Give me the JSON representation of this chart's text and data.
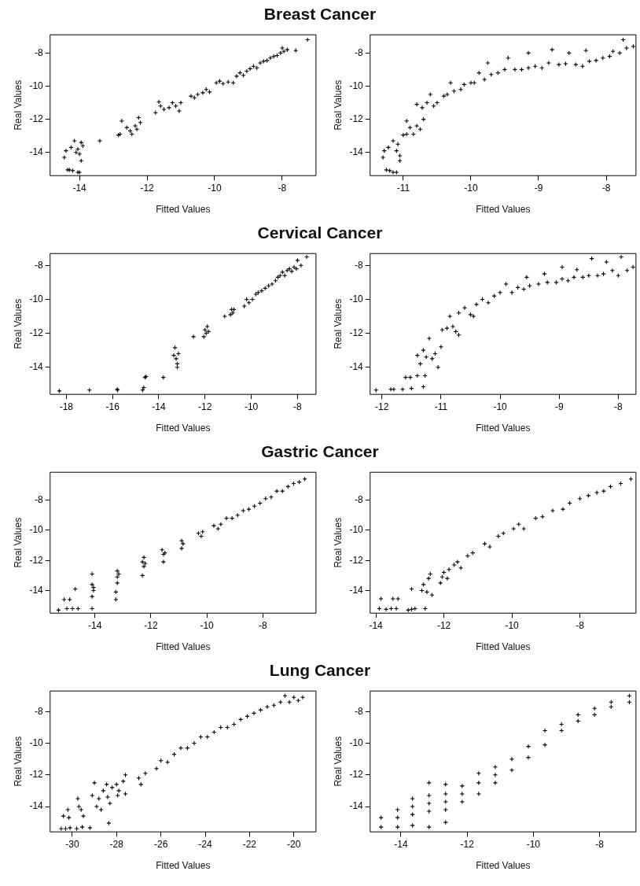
{
  "chart_data": [
    {
      "type": "scatter",
      "title": "Breast Cancer",
      "xlabel": "Fitted Values",
      "ylabel": "Real Values",
      "color": "#000000",
      "marker": "cross",
      "grid": false,
      "legend": false,
      "xlim": [
        -14.87,
        -7.0
      ],
      "ylim": [
        -15.4,
        -6.9
      ],
      "xticks": [
        -14,
        -12,
        -10,
        -8
      ],
      "yticks": [
        -14,
        -12,
        -10,
        -8
      ],
      "x": [
        -14.45,
        -14.4,
        -14.25,
        -14.35,
        -14.3,
        -14.2,
        -14.05,
        -14.0,
        -14.15,
        -14.05,
        -14.0,
        -13.95,
        -13.9,
        -13.95,
        -14.1,
        -13.4,
        -12.85,
        -12.8,
        -12.75,
        -12.6,
        -12.5,
        -12.45,
        -12.35,
        -12.3,
        -12.25,
        -12.2,
        -11.75,
        -11.65,
        -11.6,
        -11.5,
        -11.35,
        -11.25,
        -11.15,
        -11.05,
        -11.0,
        -10.7,
        -10.6,
        -10.5,
        -10.35,
        -10.25,
        -10.15,
        -9.95,
        -9.85,
        -9.75,
        -9.6,
        -9.45,
        -9.35,
        -9.25,
        -9.15,
        -9.05,
        -8.95,
        -8.85,
        -8.75,
        -8.65,
        -8.55,
        -8.45,
        -8.35,
        -8.25,
        -8.15,
        -8.05,
        -8.0,
        -7.95,
        -7.85,
        -7.6,
        -7.25
      ],
      "values": [
        -14.3,
        -13.9,
        -13.7,
        -15.05,
        -15.05,
        -15.1,
        -15.2,
        -15.2,
        -13.3,
        -13.8,
        -14.1,
        -14.5,
        -13.6,
        -13.4,
        -14.0,
        -13.3,
        -12.95,
        -12.9,
        -12.1,
        -12.5,
        -12.7,
        -12.9,
        -12.4,
        -12.6,
        -11.9,
        -12.2,
        -11.6,
        -10.95,
        -11.2,
        -11.4,
        -11.3,
        -11.0,
        -11.2,
        -11.5,
        -11.0,
        -10.6,
        -10.7,
        -10.5,
        -10.4,
        -10.2,
        -10.35,
        -9.8,
        -9.7,
        -9.85,
        -9.75,
        -9.8,
        -9.4,
        -9.2,
        -9.35,
        -9.1,
        -8.95,
        -8.8,
        -8.9,
        -8.6,
        -8.5,
        -8.45,
        -8.3,
        -8.2,
        -8.15,
        -8.0,
        -7.7,
        -7.9,
        -7.8,
        -7.85,
        -7.2
      ]
    },
    {
      "type": "scatter",
      "xlabel": "Fitted Values",
      "ylabel": "Real Values",
      "color": "#000000",
      "marker": "cross",
      "grid": false,
      "legend": false,
      "xlim": [
        -11.49,
        -7.56
      ],
      "ylim": [
        -15.4,
        -6.9
      ],
      "xticks": [
        -11,
        -10,
        -9,
        -8
      ],
      "yticks": [
        -14,
        -12,
        -10,
        -8
      ],
      "x": [
        -11.3,
        -11.28,
        -11.25,
        -11.2,
        -11.15,
        -11.1,
        -11.22,
        -11.15,
        -11.1,
        -11.05,
        -11.05,
        -11.08,
        -11.0,
        -10.95,
        -10.95,
        -10.9,
        -10.85,
        -10.8,
        -10.75,
        -10.7,
        -10.8,
        -10.72,
        -10.65,
        -10.6,
        -10.55,
        -10.5,
        -10.4,
        -10.35,
        -10.3,
        -10.25,
        -10.15,
        -10.1,
        -10.0,
        -9.95,
        -9.88,
        -9.8,
        -9.7,
        -9.75,
        -9.6,
        -9.5,
        -9.45,
        -9.35,
        -9.25,
        -9.15,
        -9.05,
        -9.15,
        -8.95,
        -8.85,
        -8.8,
        -8.7,
        -8.6,
        -8.55,
        -8.45,
        -8.35,
        -8.25,
        -8.3,
        -8.15,
        -8.05,
        -7.95,
        -7.9,
        -7.8,
        -7.75,
        -7.7,
        -7.6
      ],
      "values": [
        -14.3,
        -13.9,
        -15.05,
        -15.1,
        -15.2,
        -15.2,
        -13.7,
        -13.3,
        -13.9,
        -14.2,
        -14.5,
        -13.5,
        -12.95,
        -12.9,
        -12.1,
        -12.5,
        -12.9,
        -12.4,
        -12.6,
        -12.0,
        -11.1,
        -11.3,
        -11.0,
        -10.5,
        -11.2,
        -11.0,
        -10.6,
        -10.5,
        -9.8,
        -10.3,
        -10.2,
        -9.9,
        -9.8,
        -9.8,
        -9.2,
        -9.6,
        -9.3,
        -8.6,
        -9.2,
        -9.0,
        -8.3,
        -9.0,
        -9.0,
        -8.9,
        -8.8,
        -8.0,
        -8.9,
        -8.6,
        -7.8,
        -8.7,
        -8.65,
        -8.0,
        -8.7,
        -8.8,
        -8.5,
        -7.85,
        -8.45,
        -8.3,
        -8.2,
        -7.9,
        -8.0,
        -7.2,
        -7.7,
        -7.6
      ]
    },
    {
      "type": "scatter",
      "title": "Cervical Cancer",
      "xlabel": "Fitted Values",
      "ylabel": "Real Values",
      "color": "#000000",
      "marker": "cross",
      "grid": false,
      "legend": false,
      "xlim": [
        -18.7,
        -7.2
      ],
      "ylim": [
        -15.6,
        -7.3
      ],
      "xticks": [
        -18,
        -16,
        -14,
        -12,
        -10,
        -8
      ],
      "yticks": [
        -14,
        -12,
        -10,
        -8
      ],
      "x": [
        -18.3,
        -17.0,
        -15.8,
        -15.78,
        -14.7,
        -14.65,
        -14.6,
        -14.55,
        -13.8,
        -13.35,
        -13.3,
        -13.25,
        -13.2,
        -13.2,
        -13.15,
        -12.5,
        -12.05,
        -12.0,
        -11.95,
        -11.9,
        -11.85,
        -11.15,
        -10.9,
        -10.85,
        -10.8,
        -10.75,
        -10.3,
        -10.2,
        -10.1,
        -9.95,
        -9.8,
        -9.7,
        -9.55,
        -9.4,
        -9.25,
        -9.1,
        -8.95,
        -8.85,
        -8.75,
        -8.65,
        -8.55,
        -8.45,
        -8.35,
        -8.25,
        -8.15,
        -8.05,
        -8.0,
        -7.85,
        -7.6
      ],
      "values": [
        -15.4,
        -15.35,
        -15.3,
        -15.35,
        -15.35,
        -15.2,
        -14.6,
        -14.55,
        -14.6,
        -13.3,
        -12.85,
        -13.5,
        -13.8,
        -14.0,
        -13.2,
        -12.2,
        -12.2,
        -11.8,
        -12.0,
        -11.6,
        -11.9,
        -11.0,
        -10.9,
        -10.6,
        -10.8,
        -10.6,
        -10.4,
        -10.0,
        -10.2,
        -10.0,
        -9.7,
        -9.6,
        -9.5,
        -9.35,
        -9.2,
        -9.1,
        -8.9,
        -8.7,
        -8.6,
        -8.4,
        -8.6,
        -8.3,
        -8.2,
        -8.35,
        -8.1,
        -8.2,
        -7.7,
        -8.0,
        -7.5
      ]
    },
    {
      "type": "scatter",
      "xlabel": "Fitted Values",
      "ylabel": "Real Values",
      "color": "#000000",
      "marker": "cross",
      "grid": false,
      "legend": false,
      "xlim": [
        -12.2,
        -7.7
      ],
      "ylim": [
        -15.6,
        -7.3
      ],
      "xticks": [
        -12,
        -11,
        -10,
        -9,
        -8
      ],
      "yticks": [
        -14,
        -12,
        -10,
        -8
      ],
      "x": [
        -12.1,
        -11.85,
        -11.8,
        -11.65,
        -11.6,
        -11.5,
        -11.52,
        -11.4,
        -11.4,
        -11.27,
        -11.3,
        -11.35,
        -11.3,
        -11.25,
        -11.2,
        -11.15,
        -11.1,
        -11.05,
        -11.0,
        -10.98,
        -10.9,
        -10.85,
        -10.8,
        -10.75,
        -10.7,
        -10.7,
        -10.6,
        -10.5,
        -10.45,
        -10.4,
        -10.3,
        -10.2,
        -10.1,
        -10.0,
        -9.9,
        -9.8,
        -9.7,
        -9.6,
        -9.5,
        -9.55,
        -9.35,
        -9.25,
        -9.2,
        -9.05,
        -8.95,
        -8.95,
        -8.85,
        -8.75,
        -8.7,
        -8.6,
        -8.5,
        -8.45,
        -8.35,
        -8.25,
        -8.2,
        -8.1,
        -8.0,
        -7.95,
        -7.85,
        -7.75
      ],
      "values": [
        -15.35,
        -15.3,
        -15.3,
        -15.3,
        -14.6,
        -15.25,
        -14.6,
        -13.3,
        -14.5,
        -14.5,
        -15.15,
        -13.8,
        -13.0,
        -13.4,
        -12.3,
        -13.5,
        -13.2,
        -14.0,
        -12.8,
        -11.8,
        -11.7,
        -11.0,
        -11.6,
        -11.9,
        -12.1,
        -10.8,
        -10.5,
        -10.9,
        -11.0,
        -10.3,
        -10.0,
        -10.2,
        -9.8,
        -9.6,
        -9.1,
        -9.6,
        -9.3,
        -9.4,
        -9.2,
        -8.7,
        -9.1,
        -8.5,
        -9.0,
        -9.0,
        -8.8,
        -8.1,
        -8.9,
        -8.7,
        -8.25,
        -8.7,
        -8.6,
        -7.6,
        -8.6,
        -8.5,
        -7.8,
        -8.3,
        -8.6,
        -7.5,
        -8.3,
        -8.1
      ]
    },
    {
      "type": "scatter",
      "title": "Gastric Cancer",
      "xlabel": "Fitted Values",
      "ylabel": "Real Values",
      "color": "#000000",
      "marker": "cross",
      "grid": false,
      "legend": false,
      "xlim": [
        -15.6,
        -6.1
      ],
      "ylim": [
        -15.5,
        -6.15
      ],
      "xticks": [
        -14,
        -12,
        -10,
        -8
      ],
      "yticks": [
        -14,
        -12,
        -10,
        -8
      ],
      "x": [
        -15.3,
        -15.1,
        -15.0,
        -14.9,
        -14.8,
        -14.7,
        -14.6,
        -14.1,
        -14.1,
        -14.1,
        -14.05,
        -14.1,
        -14.05,
        -13.25,
        -13.25,
        -13.2,
        -13.2,
        -13.2,
        -13.15,
        -12.3,
        -12.3,
        -12.25,
        -12.25,
        -12.2,
        -11.6,
        -11.55,
        -11.55,
        -11.5,
        -10.9,
        -10.9,
        -10.85,
        -10.3,
        -10.2,
        -10.15,
        -9.75,
        -9.6,
        -9.5,
        -9.3,
        -9.1,
        -8.9,
        -8.7,
        -8.5,
        -8.3,
        -8.1,
        -7.9,
        -7.7,
        -7.5,
        -7.3,
        -7.1,
        -6.9,
        -6.7,
        -6.5
      ],
      "values": [
        -15.3,
        -14.6,
        -15.2,
        -14.6,
        -15.2,
        -13.9,
        -15.2,
        -15.2,
        -12.9,
        -13.6,
        -14.0,
        -14.4,
        -13.8,
        -14.6,
        -14.1,
        -12.7,
        -13.1,
        -13.5,
        -12.9,
        -13.0,
        -12.1,
        -11.8,
        -12.4,
        -12.2,
        -11.3,
        -11.6,
        -12.1,
        -11.5,
        -10.7,
        -11.2,
        -10.9,
        -10.2,
        -10.4,
        -10.1,
        -9.7,
        -9.9,
        -9.6,
        -9.2,
        -9.2,
        -9.0,
        -8.7,
        -8.6,
        -8.4,
        -8.2,
        -7.9,
        -7.8,
        -7.4,
        -7.4,
        -7.1,
        -6.9,
        -6.8,
        -6.6
      ]
    },
    {
      "type": "scatter",
      "xlabel": "Fitted Values",
      "ylabel": "Real Values",
      "color": "#000000",
      "marker": "cross",
      "grid": false,
      "legend": false,
      "xlim": [
        -14.17,
        -6.35
      ],
      "ylim": [
        -15.5,
        -6.15
      ],
      "xticks": [
        -14,
        -12,
        -10,
        -8
      ],
      "yticks": [
        -14,
        -12,
        -10,
        -8
      ],
      "x": [
        -13.9,
        -13.85,
        -13.7,
        -13.55,
        -13.5,
        -13.35,
        -13.4,
        -13.05,
        -12.95,
        -12.85,
        -12.95,
        -12.65,
        -12.6,
        -12.55,
        -12.5,
        -12.45,
        -12.4,
        -12.35,
        -12.1,
        -12.05,
        -12.0,
        -11.9,
        -11.85,
        -11.7,
        -11.6,
        -11.5,
        -11.3,
        -11.15,
        -10.8,
        -10.65,
        -10.4,
        -10.25,
        -9.95,
        -9.8,
        -9.65,
        -9.3,
        -9.1,
        -8.8,
        -8.5,
        -8.3,
        -8.0,
        -7.75,
        -7.5,
        -7.3,
        -7.1,
        -6.8,
        -6.5
      ],
      "values": [
        -15.2,
        -14.55,
        -15.25,
        -15.2,
        -14.55,
        -14.55,
        -15.2,
        -15.3,
        -15.25,
        -15.2,
        -13.9,
        -14.0,
        -13.6,
        -15.2,
        -14.1,
        -13.2,
        -12.9,
        -14.3,
        -13.5,
        -13.1,
        -12.8,
        -13.2,
        -12.6,
        -12.3,
        -12.1,
        -12.5,
        -11.7,
        -11.5,
        -10.9,
        -11.1,
        -10.4,
        -10.2,
        -9.9,
        -9.6,
        -9.9,
        -9.2,
        -9.1,
        -8.7,
        -8.6,
        -8.2,
        -7.9,
        -7.7,
        -7.5,
        -7.4,
        -7.1,
        -6.9,
        -6.6
      ]
    },
    {
      "type": "scatter",
      "title": "Lung Cancer",
      "xlabel": "Fitted Values",
      "ylabel": "Real Values",
      "color": "#000000",
      "marker": "cross",
      "grid": false,
      "legend": false,
      "xlim": [
        -31.0,
        -19.0
      ],
      "ylim": [
        -15.6,
        -6.7
      ],
      "xticks": [
        -30,
        -28,
        -26,
        -24,
        -22,
        -20
      ],
      "yticks": [
        -14,
        -12,
        -10,
        -8
      ],
      "x": [
        -30.5,
        -30.4,
        -30.3,
        -30.2,
        -30.15,
        -30.1,
        -29.8,
        -29.75,
        -29.7,
        -29.6,
        -29.55,
        -29.5,
        -29.2,
        -29.1,
        -29.0,
        -28.9,
        -28.8,
        -28.7,
        -28.6,
        -28.45,
        -28.4,
        -28.35,
        -28.3,
        -28.2,
        -28.0,
        -27.95,
        -27.9,
        -27.7,
        -27.6,
        -27.6,
        -27.0,
        -26.9,
        -26.7,
        -26.2,
        -26.0,
        -25.7,
        -25.4,
        -25.1,
        -24.8,
        -24.5,
        -24.2,
        -23.9,
        -23.6,
        -23.3,
        -23.0,
        -22.7,
        -22.4,
        -22.1,
        -21.8,
        -21.5,
        -21.2,
        -20.9,
        -20.6,
        -20.4,
        -20.2,
        -20.0,
        -19.8,
        -19.6
      ],
      "values": [
        -15.4,
        -14.6,
        -15.4,
        -14.2,
        -14.7,
        -15.35,
        -15.4,
        -13.5,
        -14.0,
        -14.2,
        -15.3,
        -14.6,
        -15.35,
        -13.3,
        -12.5,
        -14.0,
        -13.5,
        -14.2,
        -13.0,
        -12.6,
        -13.4,
        -15.05,
        -13.8,
        -12.8,
        -12.6,
        -13.3,
        -13.0,
        -12.4,
        -12.0,
        -13.2,
        -12.2,
        -12.6,
        -11.9,
        -11.6,
        -11.1,
        -11.2,
        -10.7,
        -10.3,
        -10.3,
        -10.0,
        -9.6,
        -9.6,
        -9.3,
        -9.0,
        -9.0,
        -8.8,
        -8.5,
        -8.3,
        -8.1,
        -7.9,
        -7.7,
        -7.6,
        -7.4,
        -7.0,
        -7.4,
        -7.1,
        -7.3,
        -7.1
      ]
    },
    {
      "type": "scatter",
      "xlabel": "Fitted Values",
      "ylabel": "Real Values",
      "color": "#000000",
      "marker": "cross",
      "grid": false,
      "legend": false,
      "xlim": [
        -14.93,
        -6.9
      ],
      "ylim": [
        -15.6,
        -6.7
      ],
      "xticks": [
        -14,
        -12,
        -10,
        -8
      ],
      "yticks": [
        -14,
        -12,
        -10,
        -8
      ],
      "x": [
        -14.6,
        -14.6,
        -14.1,
        -14.1,
        -14.1,
        -13.65,
        -13.65,
        -13.65,
        -13.65,
        -13.15,
        -13.15,
        -13.15,
        -13.15,
        -13.15,
        -12.65,
        -12.65,
        -12.65,
        -12.65,
        -12.65,
        -12.15,
        -12.15,
        -12.15,
        -11.65,
        -11.65,
        -11.65,
        -11.15,
        -11.15,
        -11.15,
        -10.65,
        -10.65,
        -10.15,
        -10.15,
        -9.65,
        -9.65,
        -9.15,
        -9.15,
        -8.65,
        -8.65,
        -8.15,
        -8.15,
        -7.65,
        -7.65,
        -7.1,
        -7.1
      ],
      "values": [
        -14.7,
        -15.3,
        -14.2,
        -14.7,
        -15.3,
        -13.5,
        -14.0,
        -14.5,
        -15.2,
        -12.5,
        -13.3,
        -13.8,
        -14.3,
        -15.3,
        -12.6,
        -13.2,
        -13.7,
        -14.2,
        -15.0,
        -12.7,
        -13.2,
        -13.7,
        -11.9,
        -12.5,
        -13.2,
        -11.5,
        -12.0,
        -12.5,
        -11.0,
        -11.7,
        -10.2,
        -10.9,
        -9.2,
        -10.1,
        -8.8,
        -9.2,
        -8.2,
        -8.6,
        -7.8,
        -8.2,
        -7.4,
        -7.7,
        -7.0,
        -7.4
      ]
    }
  ]
}
